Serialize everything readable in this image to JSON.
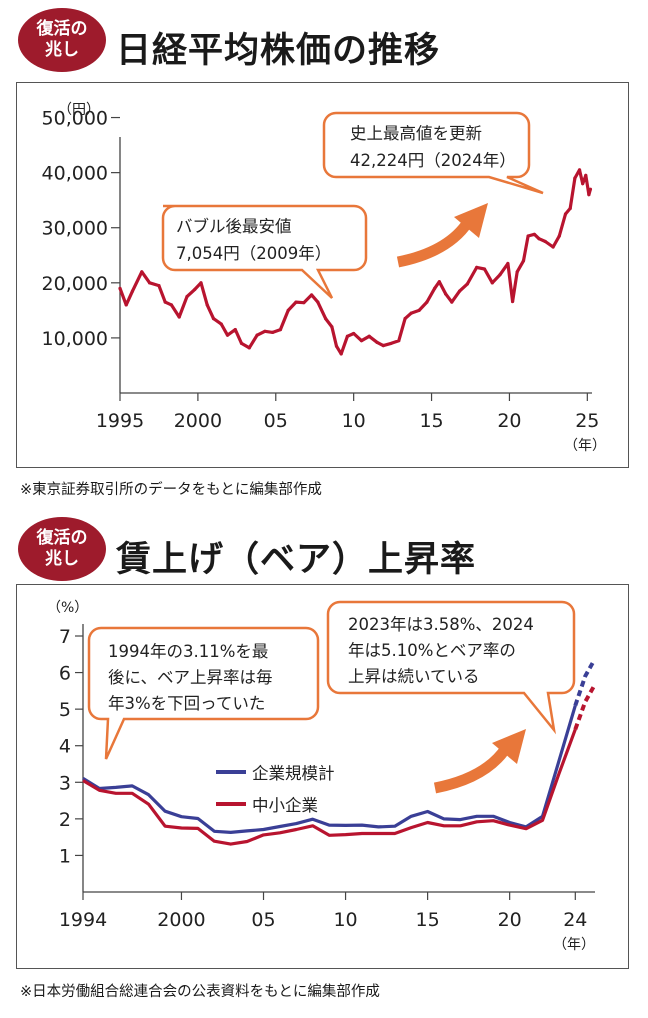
{
  "chart1": {
    "badge": [
      "復活の",
      "兆し"
    ],
    "title": "日経平均株価の推移",
    "source": "※東京証券取引所のデータをもとに編集部作成",
    "callout_low": [
      "バブル後最安値",
      "7,054円（2009年）"
    ],
    "callout_high": [
      "史上最高値を更新",
      "42,224円（2024年）"
    ],
    "colors": {
      "line": "#b8142f",
      "callout_border": "#e8773a",
      "arrow": "#e8773a"
    },
    "chart_data": {
      "type": "line",
      "ylabel": "（円）",
      "xlabel": "（年）",
      "ylim": [
        0,
        55000
      ],
      "xlim": [
        1995,
        2025.3
      ],
      "y_ticks": [
        10000,
        20000,
        30000,
        40000,
        50000
      ],
      "y_tick_labels": [
        "10,000",
        "20,000",
        "30,000",
        "40,000",
        "50,000"
      ],
      "x_ticks": [
        1995,
        2000,
        2005,
        2010,
        2015,
        2020,
        2025
      ],
      "x_tick_labels": [
        "1995",
        "2000",
        "05",
        "10",
        "15",
        "20",
        "25"
      ],
      "series": [
        {
          "x": [
            1995,
            1995.4,
            1995.8,
            1996.4,
            1996.9,
            1997.5,
            1997.9,
            1998.3,
            1998.8,
            1999.3,
            1999.8,
            2000.2,
            2000.6,
            2001.0,
            2001.5,
            2001.9,
            2002.4,
            2002.8,
            2003.3,
            2003.8,
            2004.3,
            2004.8,
            2005.3,
            2005.8,
            2006.3,
            2006.8,
            2007.3,
            2007.7,
            2008.2,
            2008.6,
            2008.9,
            2009.2,
            2009.6,
            2010.0,
            2010.5,
            2011.0,
            2011.5,
            2011.9,
            2012.4,
            2012.9,
            2013.3,
            2013.7,
            2014.2,
            2014.7,
            2015.2,
            2015.5,
            2015.9,
            2016.3,
            2016.8,
            2017.3,
            2017.9,
            2018.4,
            2018.9,
            2019.4,
            2019.9,
            2020.2,
            2020.5,
            2020.9,
            2021.2,
            2021.6,
            2021.9,
            2022.3,
            2022.8,
            2023.2,
            2023.6,
            2023.9,
            2024.2,
            2024.5,
            2024.7,
            2024.9,
            2025.1,
            2025.2
          ],
          "values": [
            19000,
            16000,
            18500,
            22000,
            20000,
            19500,
            16500,
            16000,
            13800,
            17500,
            18800,
            20000,
            16000,
            13500,
            12500,
            10500,
            11500,
            9000,
            8200,
            10500,
            11200,
            11000,
            11500,
            15000,
            16500,
            16400,
            17800,
            16500,
            13500,
            12000,
            8500,
            7100,
            10300,
            10800,
            9500,
            10300,
            9200,
            8600,
            9000,
            9500,
            13500,
            14500,
            15000,
            16500,
            19000,
            20200,
            18000,
            16500,
            18500,
            19800,
            22800,
            22500,
            20000,
            21500,
            23500,
            16600,
            22000,
            24000,
            28500,
            28800,
            28000,
            27500,
            26500,
            28500,
            32500,
            33500,
            39000,
            40500,
            38000,
            39500,
            36000,
            37000
          ]
        }
      ]
    }
  },
  "chart2": {
    "badge": [
      "復活の",
      "兆し"
    ],
    "title": "賃上げ（ベア）上昇率",
    "source": "※日本労働組合総連合会の公表資料をもとに編集部作成",
    "callout_left": [
      "1994年の3.11%を最",
      "後に、ベア上昇率は毎",
      "年3%を下回っていた"
    ],
    "callout_right": [
      "2023年は3.58%、2024",
      "年は5.10%とベア率の",
      "上昇は続いている"
    ],
    "colors": {
      "all": "#3a3f96",
      "small": "#b8142f",
      "callout_border": "#e8773a",
      "arrow": "#e8773a"
    },
    "chart_data": {
      "type": "line",
      "ylabel": "（%）",
      "xlabel": "（年）",
      "ylim": [
        0,
        7
      ],
      "xlim": [
        1994,
        2025.2
      ],
      "y_ticks": [
        1,
        2,
        3,
        4,
        5,
        6,
        7
      ],
      "y_tick_labels": [
        "1",
        "2",
        "3",
        "4",
        "5",
        "6",
        "7"
      ],
      "x_ticks": [
        1994,
        2000,
        2005,
        2010,
        2015,
        2020,
        2024
      ],
      "x_tick_labels": [
        "1994",
        "2000",
        "05",
        "10",
        "15",
        "20",
        "24"
      ],
      "x": [
        1994,
        1995,
        1996,
        1997,
        1998,
        1999,
        2000,
        2001,
        2002,
        2003,
        2004,
        2005,
        2006,
        2007,
        2008,
        2009,
        2010,
        2011,
        2012,
        2013,
        2014,
        2015,
        2016,
        2017,
        2018,
        2019,
        2020,
        2021,
        2022,
        2023,
        2024
      ],
      "series": [
        {
          "name": "企業規模計",
          "values": [
            3.11,
            2.83,
            2.86,
            2.9,
            2.66,
            2.21,
            2.06,
            2.01,
            1.66,
            1.63,
            1.67,
            1.71,
            1.79,
            1.87,
            1.99,
            1.83,
            1.82,
            1.83,
            1.78,
            1.8,
            2.07,
            2.2,
            2.0,
            1.98,
            2.07,
            2.07,
            1.9,
            1.78,
            2.07,
            3.58,
            5.1
          ],
          "projected": [
            5.1,
            5.9,
            6.3
          ]
        },
        {
          "name": "中小企業",
          "values": [
            3.05,
            2.78,
            2.7,
            2.7,
            2.4,
            1.8,
            1.75,
            1.74,
            1.39,
            1.31,
            1.38,
            1.56,
            1.62,
            1.71,
            1.81,
            1.55,
            1.57,
            1.6,
            1.6,
            1.6,
            1.76,
            1.9,
            1.81,
            1.81,
            1.92,
            1.95,
            1.83,
            1.73,
            1.96,
            3.23,
            4.45
          ],
          "projected": [
            4.45,
            5.2,
            5.6
          ]
        }
      ]
    }
  }
}
